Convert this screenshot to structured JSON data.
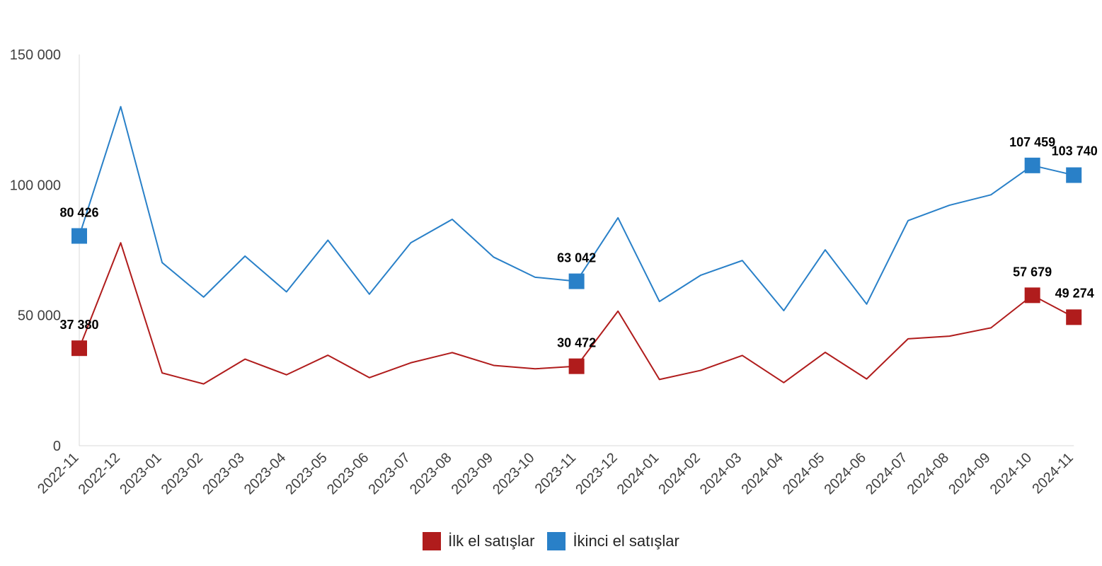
{
  "chart_data": {
    "type": "line",
    "categories": [
      "2022-11",
      "2022-12",
      "2023-01",
      "2023-02",
      "2023-03",
      "2023-04",
      "2023-05",
      "2023-06",
      "2023-07",
      "2023-08",
      "2023-09",
      "2023-10",
      "2023-11",
      "2023-12",
      "2024-01",
      "2024-02",
      "2024-03",
      "2024-04",
      "2024-05",
      "2024-06",
      "2024-07",
      "2024-08",
      "2024-09",
      "2024-10",
      "2024-11"
    ],
    "yticks": [
      "0",
      "50 000",
      "100 000",
      "150 000"
    ],
    "ylim": [
      0,
      150000
    ],
    "series": [
      {
        "name": "İlk el satışlar",
        "color": "#b01c1c",
        "values": [
          37380,
          77800,
          27900,
          23700,
          33200,
          27200,
          34700,
          26100,
          31800,
          35700,
          30800,
          29500,
          30472,
          51600,
          25400,
          28900,
          34600,
          24200,
          35800,
          25600,
          41000,
          42000,
          45200,
          57679,
          49274
        ],
        "labels": [
          {
            "index": 0,
            "text": "37 380"
          },
          {
            "index": 12,
            "text": "30 472"
          },
          {
            "index": 23,
            "text": "57 679"
          },
          {
            "index": 24,
            "text": "49 274"
          }
        ]
      },
      {
        "name": "İkinci el satışlar",
        "color": "#2980c8",
        "values": [
          80426,
          130000,
          70200,
          57000,
          72700,
          59000,
          78800,
          58100,
          77800,
          86800,
          72300,
          64600,
          63042,
          87400,
          55300,
          65400,
          71000,
          51800,
          75100,
          54300,
          86300,
          92200,
          96200,
          107459,
          103740
        ],
        "labels": [
          {
            "index": 0,
            "text": "80 426"
          },
          {
            "index": 12,
            "text": "63 042"
          },
          {
            "index": 23,
            "text": "107 459"
          },
          {
            "index": 24,
            "text": "103 740"
          }
        ]
      }
    ],
    "grid": false,
    "legend_position": "bottom"
  }
}
